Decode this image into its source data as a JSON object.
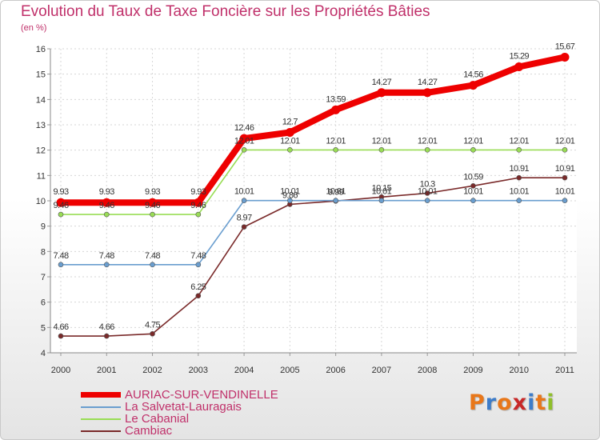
{
  "header": {
    "title": "Evolution du Taux de Taxe Foncière sur les Propriétés Bâties",
    "unit": "(en %)"
  },
  "logo": {
    "letters": [
      "P",
      "r",
      "o",
      "x",
      "i",
      "t",
      "i"
    ]
  },
  "colors": {
    "title": "#c0306a",
    "logo": [
      "#e8771a",
      "#3d7cc9",
      "#e8771a",
      "#c82828",
      "#3d7cc9",
      "#e8771a",
      "#8fbf2a"
    ]
  },
  "chart_data": {
    "type": "line",
    "title": "Evolution du Taux de Taxe Foncière sur les Propriétés Bâties",
    "ylabel": "(en %)",
    "xlabel": "",
    "x": [
      "2000",
      "2001",
      "2002",
      "2003",
      "2004",
      "2005",
      "2006",
      "2007",
      "2008",
      "2009",
      "2010",
      "2011"
    ],
    "ylim": [
      4,
      16
    ],
    "yticks": [
      "4",
      "5",
      "6",
      "7",
      "8",
      "9",
      "10",
      "11",
      "12",
      "13",
      "14",
      "15",
      "16"
    ],
    "grid": true,
    "series": [
      {
        "name": "AURIAC-SUR-VENDINELLE",
        "color": "#ee0000",
        "values": [
          9.93,
          9.93,
          9.93,
          9.93,
          12.46,
          12.7,
          13.59,
          14.27,
          14.27,
          14.56,
          15.29,
          15.67
        ],
        "labels": [
          "9.93",
          "9.93",
          "9.93",
          "9.93",
          "12.46",
          "12.7",
          "13.59",
          "14.27",
          "14.27",
          "14.56",
          "15.29",
          "15.67"
        ]
      },
      {
        "name": "La Salvetat-Lauragais",
        "color": "#6a9ecf",
        "values": [
          7.48,
          7.48,
          7.48,
          7.48,
          10.01,
          10.01,
          10.01,
          10.01,
          10.01,
          10.01,
          10.01,
          10.01
        ],
        "labels": [
          "7.48",
          "7.48",
          "7.48",
          "7.48",
          "10.01",
          "10.01",
          "10.01",
          "10.01",
          "10.01",
          "10.01",
          "10.01",
          "10.01"
        ]
      },
      {
        "name": "Le Cabanial",
        "color": "#99dd55",
        "values": [
          9.46,
          9.46,
          9.46,
          9.46,
          12.01,
          12.01,
          12.01,
          12.01,
          12.01,
          12.01,
          12.01,
          12.01
        ],
        "labels": [
          "9.46",
          "9.46",
          "9.46",
          "9.46",
          "12.01",
          "12.01",
          "12.01",
          "12.01",
          "12.01",
          "12.01",
          "12.01",
          "12.01"
        ]
      },
      {
        "name": "Cambiac",
        "color": "#7a2a2a",
        "values": [
          4.66,
          4.66,
          4.75,
          6.25,
          8.97,
          9.86,
          9.99,
          10.15,
          10.3,
          10.59,
          10.91,
          10.91
        ],
        "labels": [
          "4.66",
          "4.66",
          "4.75",
          "6.25",
          "8.97",
          "9.86",
          "9.99",
          "10.15",
          "10.3",
          "10.59",
          "10.91",
          "10.91"
        ]
      }
    ]
  }
}
